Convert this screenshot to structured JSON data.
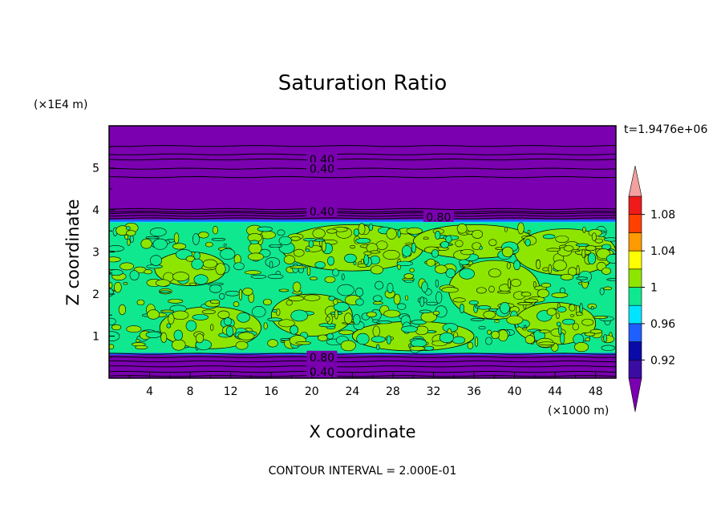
{
  "chart_data": {
    "type": "heatmap",
    "title": "Saturation Ratio",
    "xlabel": "X coordinate",
    "ylabel": "Z coordinate",
    "x_unit": "(×1000 m)",
    "y_unit": "(×1E4 m)",
    "time_label": "t=1.9476e+06",
    "footer": "CONTOUR INTERVAL = 2.000E-01",
    "xlim": [
      0,
      50
    ],
    "ylim": [
      0,
      6
    ],
    "x_ticks": [
      4,
      8,
      12,
      16,
      20,
      24,
      28,
      32,
      36,
      40,
      44,
      48
    ],
    "y_ticks": [
      1,
      2,
      3,
      4,
      5
    ],
    "colorbar": {
      "levels": [
        0.9,
        0.92,
        0.94,
        0.96,
        0.98,
        1.0,
        1.02,
        1.04,
        1.06,
        1.08,
        1.1
      ],
      "colors": [
        "#3a0ca3",
        "#0a0aa8",
        "#1f5fff",
        "#00e5ff",
        "#10e890",
        "#8ee600",
        "#ffff00",
        "#ff9a00",
        "#ff4000",
        "#ee1a1a"
      ],
      "under_color": "#7a00b0",
      "over_color": "#f4a0a0",
      "tick_labels": [
        {
          "value": 0.92,
          "label": "0.92"
        },
        {
          "value": 0.96,
          "label": "0.96"
        },
        {
          "value": 1.0,
          "label": "1"
        },
        {
          "value": 1.04,
          "label": "1.04"
        },
        {
          "value": 1.08,
          "label": "1.08"
        }
      ]
    },
    "regions": [
      {
        "name": "upper-dry-layer",
        "z_range": [
          3.9,
          6.0
        ],
        "value_range": "< 0.90"
      },
      {
        "name": "cloud-layer",
        "z_range": [
          0.6,
          3.7
        ],
        "value_range": "0.98 - 1.02"
      },
      {
        "name": "lower-dry-layer",
        "z_range": [
          0.0,
          0.55
        ],
        "value_range": "< 0.90"
      }
    ],
    "contour_labels": [
      {
        "text": "0.40",
        "x": 21.0,
        "z": 5.2
      },
      {
        "text": "0.40",
        "x": 21.0,
        "z": 4.98
      },
      {
        "text": "0.40",
        "x": 21.0,
        "z": 3.96
      },
      {
        "text": "0.80",
        "x": 32.5,
        "z": 3.83
      },
      {
        "text": "0.80",
        "x": 21.0,
        "z": 0.5
      },
      {
        "text": "0.40",
        "x": 21.0,
        "z": 0.15
      }
    ]
  }
}
